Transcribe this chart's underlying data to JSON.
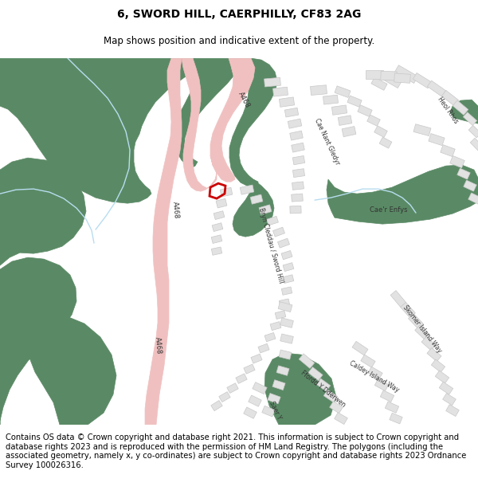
{
  "title": "6, SWORD HILL, CAERPHILLY, CF83 2AG",
  "subtitle": "Map shows position and indicative extent of the property.",
  "footer": "Contains OS data © Crown copyright and database right 2021. This information is subject to Crown copyright and database rights 2023 and is reproduced with the permission of HM Land Registry. The polygons (including the associated geometry, namely x, y co-ordinates) are subject to Crown copyright and database rights 2023 Ordnance Survey 100026316.",
  "green": "#5a8a65",
  "pink": "#f0c0c0",
  "white": "#ffffff",
  "bldg": "#e2e2e2",
  "bldg_e": "#c8c8c8",
  "red": "#cc0000",
  "stream": "#b8ddf0",
  "title_fs": 10,
  "sub_fs": 8.5,
  "footer_fs": 7.2
}
